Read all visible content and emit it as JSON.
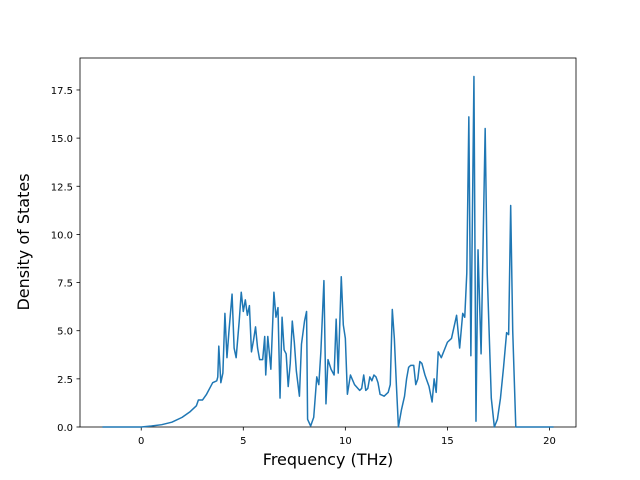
{
  "chart_data": {
    "type": "line",
    "x_label": "Frequency (THz)",
    "y_label": "Density of States",
    "xlim": [
      -3.0,
      21.3
    ],
    "ylim": [
      0,
      19.16
    ],
    "xticks": [
      0,
      5,
      10,
      15,
      20
    ],
    "yticks": [
      {
        "value": 0,
        "label": "0.0"
      },
      2.5,
      {
        "value": 5,
        "label": "5.0"
      },
      7.5,
      {
        "value": 10,
        "label": "10.0"
      },
      12.5,
      {
        "value": 15,
        "label": "15.0"
      },
      17.5
    ],
    "series": [
      {
        "color": "#1f77b4",
        "x": [
          -1.9,
          -1,
          0,
          0.5,
          1,
          1.5,
          2,
          2.4,
          2.7,
          2.8,
          3.0,
          3.2,
          3.4,
          3.5,
          3.7,
          3.75,
          3.8,
          3.9,
          4.0,
          4.1,
          4.2,
          4.3,
          4.45,
          4.55,
          4.65,
          4.8,
          4.9,
          5.0,
          5.1,
          5.2,
          5.3,
          5.4,
          5.5,
          5.6,
          5.7,
          5.8,
          5.95,
          6.05,
          6.1,
          6.2,
          6.35,
          6.5,
          6.6,
          6.7,
          6.8,
          6.9,
          7.0,
          7.1,
          7.2,
          7.3,
          7.4,
          7.5,
          7.6,
          7.75,
          7.85,
          8.0,
          8.1,
          8.15,
          8.3,
          8.45,
          8.6,
          8.7,
          8.8,
          8.95,
          9.05,
          9.15,
          9.3,
          9.45,
          9.55,
          9.65,
          9.8,
          9.9,
          10.0,
          10.1,
          10.25,
          10.45,
          10.7,
          10.8,
          10.9,
          11.0,
          11.1,
          11.2,
          11.3,
          11.4,
          11.5,
          11.6,
          11.7,
          11.9,
          12.1,
          12.2,
          12.3,
          12.4,
          12.5,
          12.6,
          12.75,
          12.9,
          13.0,
          13.1,
          13.2,
          13.35,
          13.45,
          13.55,
          13.65,
          13.75,
          13.9,
          14.1,
          14.25,
          14.35,
          14.45,
          14.55,
          14.7,
          15.0,
          15.2,
          15.45,
          15.6,
          15.75,
          15.85,
          15.95,
          16.05,
          16.15,
          16.3,
          16.4,
          16.5,
          16.65,
          16.85,
          16.95,
          17.15,
          17.3,
          17.45,
          17.6,
          17.75,
          17.9,
          18.0,
          18.1,
          18.2,
          18.35,
          18.6,
          19.5,
          20.2
        ],
        "values": [
          0,
          0,
          0,
          0.05,
          0.12,
          0.25,
          0.5,
          0.8,
          1.1,
          1.4,
          1.4,
          1.7,
          2.1,
          2.3,
          2.4,
          2.6,
          4.2,
          2.3,
          2.8,
          5.9,
          3.6,
          5.0,
          6.9,
          4.1,
          3.6,
          5.5,
          7.0,
          6.0,
          6.6,
          5.8,
          6.3,
          3.9,
          4.5,
          5.2,
          4.1,
          3.5,
          3.5,
          4.7,
          2.7,
          4.7,
          3.0,
          7.0,
          5.7,
          6.2,
          1.5,
          5.7,
          4.0,
          3.8,
          2.1,
          3.3,
          5.5,
          4.4,
          2.9,
          1.6,
          4.3,
          5.5,
          6.0,
          0.4,
          0.05,
          0.5,
          2.6,
          2.2,
          3.9,
          7.6,
          1.2,
          3.5,
          3.0,
          2.7,
          5.6,
          2.8,
          7.8,
          5.3,
          4.6,
          1.7,
          2.7,
          2.2,
          1.9,
          2.0,
          2.7,
          1.9,
          2.0,
          2.6,
          2.4,
          2.7,
          2.6,
          2.3,
          1.7,
          1.6,
          1.8,
          2.2,
          6.1,
          4.6,
          2.2,
          0.0,
          0.9,
          1.6,
          2.5,
          3.1,
          3.2,
          3.2,
          2.2,
          2.5,
          3.4,
          3.3,
          2.7,
          2.1,
          1.3,
          2.5,
          1.8,
          3.9,
          3.6,
          4.4,
          4.6,
          5.8,
          4.1,
          5.9,
          5.7,
          8.0,
          16.1,
          3.7,
          18.2,
          0.3,
          9.2,
          3.8,
          15.5,
          8.0,
          1.5,
          0.0,
          0.4,
          1.5,
          3.1,
          4.9,
          4.8,
          11.5,
          5.0,
          0.0,
          0,
          0,
          0
        ]
      }
    ]
  }
}
